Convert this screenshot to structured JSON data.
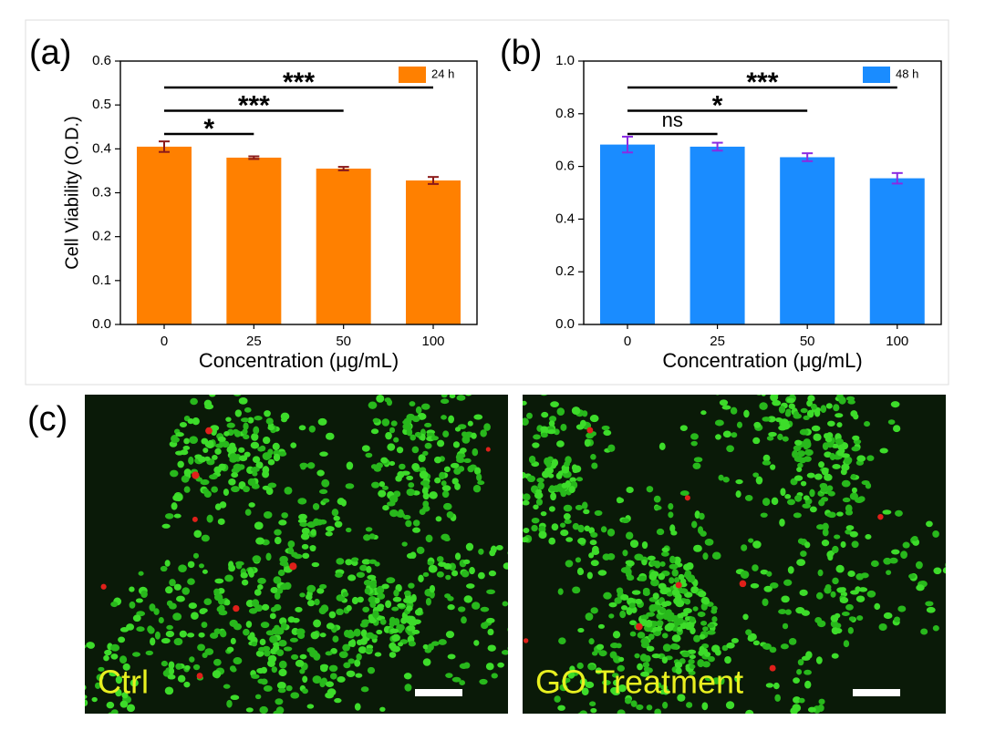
{
  "chart_data": [
    {
      "type": "bar",
      "panel_label": "(a)",
      "x_label": "Concentration (μg/mL)",
      "y_label": "Cell Viability (O.D.)",
      "categories": [
        "0",
        "25",
        "50",
        "100"
      ],
      "series": [
        {
          "name": "24 h",
          "color": "#ff8000",
          "error_color": "#8b1a1a",
          "values": [
            0.405,
            0.38,
            0.355,
            0.328
          ],
          "errors": [
            0.012,
            0.003,
            0.004,
            0.008
          ]
        }
      ],
      "ylim": [
        0,
        0.6
      ],
      "yticks": [
        {
          "value": 0,
          "label": "0.0"
        },
        0.1,
        0.2,
        0.3,
        0.4,
        0.5,
        0.6
      ],
      "legend": "upper right",
      "significance": [
        {
          "from": "0",
          "to": "25",
          "label": "*"
        },
        {
          "from": "0",
          "to": "50",
          "label": "***"
        },
        {
          "from": "0",
          "to": "100",
          "label": "***"
        }
      ]
    },
    {
      "type": "bar",
      "panel_label": "(b)",
      "x_label": "Concentration (μg/mL)",
      "categories": [
        "0",
        "25",
        "50",
        "100"
      ],
      "series": [
        {
          "name": "48 h",
          "color": "#1a8cff",
          "error_color": "#8a2be2",
          "values": [
            0.683,
            0.675,
            0.635,
            0.555
          ],
          "errors": [
            0.03,
            0.015,
            0.015,
            0.02
          ]
        }
      ],
      "ylim": [
        0,
        1
      ],
      "yticks": [
        {
          "value": 0,
          "label": "0.0"
        },
        0.2,
        0.4,
        0.6,
        0.8,
        {
          "value": 1,
          "label": "1.0"
        }
      ],
      "legend": "upper right",
      "significance": [
        {
          "from": "0",
          "to": "25",
          "label": "ns"
        },
        {
          "from": "0",
          "to": "50",
          "label": "*"
        },
        {
          "from": "0",
          "to": "100",
          "label": "***"
        }
      ]
    }
  ],
  "images": {
    "panel_label": "(c)",
    "left": {
      "label": "Ctrl"
    },
    "right": {
      "label": "GO Treatment"
    }
  }
}
